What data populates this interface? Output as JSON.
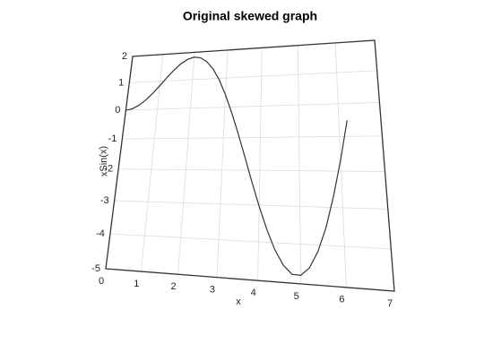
{
  "chart_data": {
    "type": "line",
    "title": "Original skewed graph",
    "x_label": "x",
    "y_label": "xSin(x)",
    "x": [
      0,
      0.2,
      0.4,
      0.6,
      0.8,
      1.0,
      1.2,
      1.4,
      1.6,
      1.8,
      2.0,
      2.2,
      2.4,
      2.6,
      2.8,
      3.0,
      3.2,
      3.4,
      3.6,
      3.8,
      4.0,
      4.2,
      4.4,
      4.6,
      4.8,
      5.0,
      5.2,
      5.4,
      5.6,
      5.8,
      6.0,
      6.2
    ],
    "series": [
      {
        "name": "xSin(x)",
        "color": "#333333",
        "values": [
          0,
          0.04,
          0.16,
          0.34,
          0.57,
          0.84,
          1.12,
          1.38,
          1.6,
          1.75,
          1.82,
          1.78,
          1.62,
          1.34,
          0.94,
          0.42,
          -0.19,
          -0.87,
          -1.59,
          -2.33,
          -3.03,
          -3.66,
          -4.19,
          -4.57,
          -4.78,
          -4.79,
          -4.59,
          -4.17,
          -3.54,
          -2.69,
          -1.68,
          -0.52
        ]
      }
    ],
    "xlim": [
      0,
      7
    ],
    "xticks": [
      0,
      1,
      2,
      3,
      4,
      5,
      6,
      7
    ],
    "ylim": [
      -5,
      2
    ],
    "yticks": [
      -5,
      -4,
      -3,
      -2,
      -1,
      0,
      1,
      2
    ],
    "grid": true
  }
}
